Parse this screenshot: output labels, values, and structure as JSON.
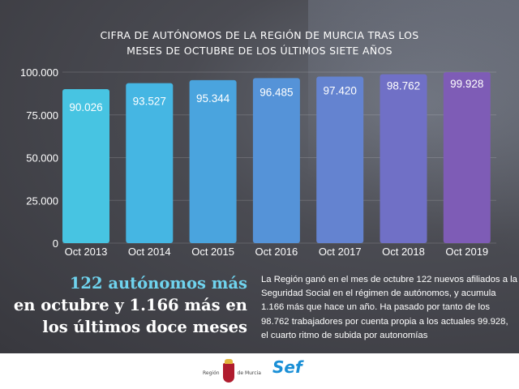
{
  "chart_data": {
    "type": "bar",
    "title": "CIFRA DE AUTÓNOMOS DE LA REGIÓN DE MURCIA TRAS LOS MESES DE OCTUBRE DE LOS ÚLTIMOS SIETE AÑOS",
    "title_lines": [
      "CIFRA DE AUTÓNOMOS DE LA REGIÓN DE MURCIA TRAS LOS",
      "MESES DE OCTUBRE DE LOS ÚLTIMOS SIETE AÑOS"
    ],
    "categories": [
      "Oct 2013",
      "Oct 2014",
      "Oct 2015",
      "Oct 2016",
      "Oct 2017",
      "Oct 2018",
      "Oct 2019"
    ],
    "values": [
      90026,
      93527,
      95344,
      96485,
      97420,
      98762,
      99928
    ],
    "value_labels": [
      "90.026",
      "93.527",
      "95.344",
      "96.485",
      "97.420",
      "98.762",
      "99.928"
    ],
    "yticks": [
      0,
      25000,
      50000,
      75000,
      100000
    ],
    "ytick_labels": [
      "0",
      "25.000",
      "50.000",
      "75.000",
      "100.000"
    ],
    "ylim": [
      0,
      100000
    ],
    "grid": true,
    "bar_colors": [
      "#47c4e2",
      "#45b6e3",
      "#4aa4de",
      "#5593d8",
      "#6483d0",
      "#7070c6",
      "#7e5cb6"
    ]
  },
  "headline": {
    "line1": "122 autónomos más",
    "line2": "en octubre y 1.166 más en",
    "line3": "los últimos doce meses"
  },
  "body_text": "La Región ganó en el mes de octubre 122 nuevos afiliados a la Seguridad Social en el régimen de autónomos, y acumula 1.166 más que hace un año. Ha pasado por tanto de los 98.762 trabajadores por cuenta propia a los actuales 99.928, el cuarto ritmo de subida por autonomías",
  "footer": {
    "region_left": "Región",
    "region_right": "de Murcia",
    "sef": "Sef"
  }
}
